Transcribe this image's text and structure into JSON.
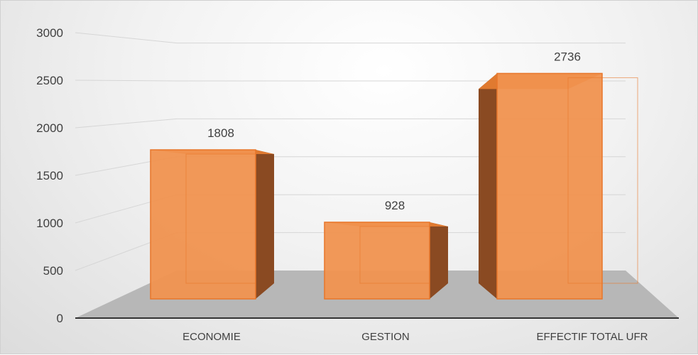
{
  "chart_data": {
    "type": "bar",
    "style": "3d-column",
    "categories": [
      "ECONOMIE",
      "GESTION",
      "EFFECTIF TOTAL UFR"
    ],
    "values": [
      1808,
      928,
      2736
    ],
    "data_labels": [
      "1808",
      "928",
      "2736"
    ],
    "yticks": [
      "0",
      "500",
      "1000",
      "1500",
      "2000",
      "2500",
      "3000"
    ],
    "ylim": [
      0,
      3000
    ],
    "title": "",
    "xlabel": "",
    "ylabel": "",
    "grid": true,
    "legend": "none",
    "colors": {
      "bar_front": "#f0924f",
      "bar_top": "#e07a30",
      "bar_side": "#8a4a22",
      "bar_edge": "#e8762a",
      "floor": "#b7b7b7",
      "grid": "#d6d6d6",
      "axis": "#333333",
      "text": "#404040"
    }
  }
}
